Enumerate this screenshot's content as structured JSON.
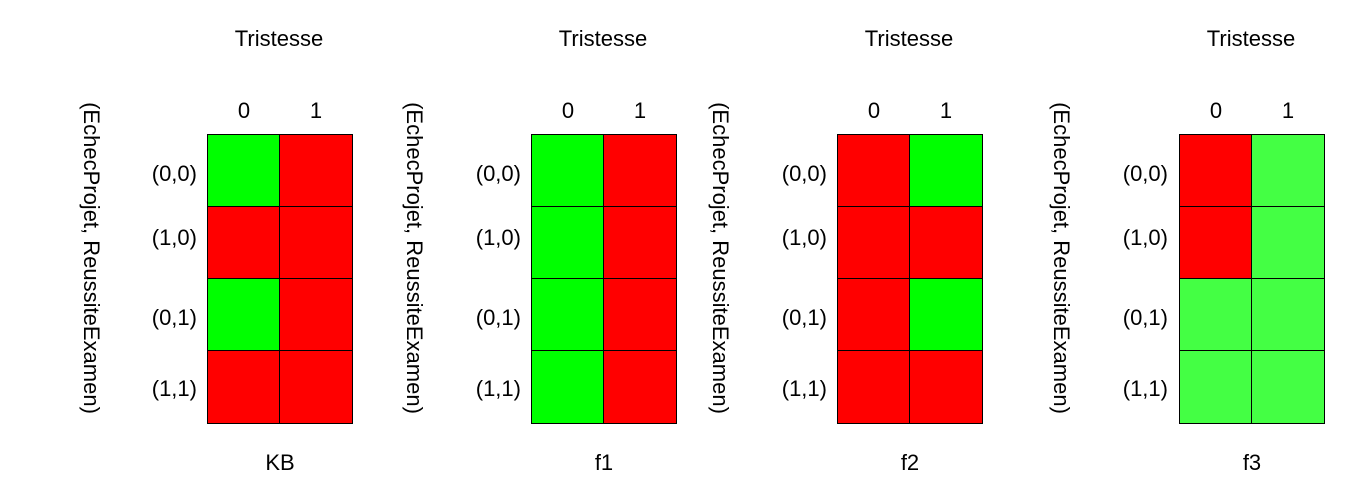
{
  "colors": {
    "green": "#00ff00",
    "red": "#ff0000",
    "light_green": "#44ff44"
  },
  "panels": [
    {
      "name": "KB",
      "title": "Tristesse",
      "y_label": "(EchecProjet, ReussiteExamen)",
      "columns": [
        "0",
        "1"
      ],
      "rows": [
        "(0,0)",
        "(1,0)",
        "(0,1)",
        "(1,1)"
      ],
      "cells": [
        [
          "#00ff00",
          "#ff0000"
        ],
        [
          "#ff0000",
          "#ff0000"
        ],
        [
          "#00ff00",
          "#ff0000"
        ],
        [
          "#ff0000",
          "#ff0000"
        ]
      ]
    },
    {
      "name": "f1",
      "title": "Tristesse",
      "y_label": "(EchecProjet, ReussiteExamen)",
      "columns": [
        "0",
        "1"
      ],
      "rows": [
        "(0,0)",
        "(1,0)",
        "(0,1)",
        "(1,1)"
      ],
      "cells": [
        [
          "#00ff00",
          "#ff0000"
        ],
        [
          "#00ff00",
          "#ff0000"
        ],
        [
          "#00ff00",
          "#ff0000"
        ],
        [
          "#00ff00",
          "#ff0000"
        ]
      ]
    },
    {
      "name": "f2",
      "title": "Tristesse",
      "y_label": "(EchecProjet, ReussiteExamen)",
      "columns": [
        "0",
        "1"
      ],
      "rows": [
        "(0,0)",
        "(1,0)",
        "(0,1)",
        "(1,1)"
      ],
      "cells": [
        [
          "#ff0000",
          "#00ff00"
        ],
        [
          "#ff0000",
          "#ff0000"
        ],
        [
          "#ff0000",
          "#00ff00"
        ],
        [
          "#ff0000",
          "#ff0000"
        ]
      ]
    },
    {
      "name": "f3",
      "title": "Tristesse",
      "y_label": "(EchecProjet, ReussiteExamen)",
      "columns": [
        "0",
        "1"
      ],
      "rows": [
        "(0,0)",
        "(1,0)",
        "(0,1)",
        "(1,1)"
      ],
      "cells": [
        [
          "#ff0000",
          "#44ff44"
        ],
        [
          "#ff0000",
          "#44ff44"
        ],
        [
          "#44ff44",
          "#44ff44"
        ],
        [
          "#44ff44",
          "#44ff44"
        ]
      ]
    }
  ]
}
